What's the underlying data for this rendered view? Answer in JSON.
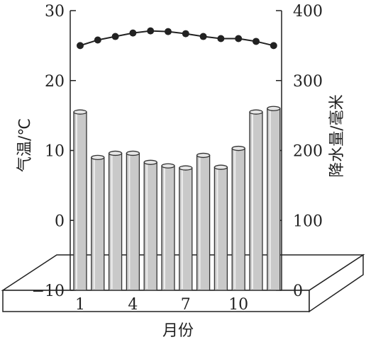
{
  "chart_data": {
    "type": "bar+line",
    "x": [
      1,
      2,
      3,
      4,
      5,
      6,
      7,
      8,
      9,
      10,
      11,
      12
    ],
    "xticks": [
      "1",
      "4",
      "7",
      "10"
    ],
    "xlabel": "月份",
    "y_left": {
      "label": "气温/℃",
      "range": [
        -10,
        30
      ],
      "ticks": [
        "−10",
        "0",
        "10",
        "20",
        "30"
      ]
    },
    "y_right": {
      "label": "降水量/毫米",
      "range": [
        0,
        400
      ],
      "ticks": [
        "0",
        "100",
        "200",
        "300",
        "400"
      ]
    },
    "series": [
      {
        "kind": "line",
        "axis": "left",
        "values": [
          25.0,
          25.8,
          26.3,
          26.8,
          27.1,
          27.0,
          26.7,
          26.3,
          26.0,
          26.0,
          25.6,
          25.0
        ]
      },
      {
        "kind": "bar",
        "axis": "right",
        "values": [
          255,
          190,
          196,
          196,
          183,
          178,
          175,
          193,
          176,
          203,
          255,
          260
        ]
      }
    ],
    "colors": {
      "bar_fill": "#c9c9c9",
      "bar_edge": "#333333",
      "line": "#222222",
      "marker": "#222222"
    }
  }
}
